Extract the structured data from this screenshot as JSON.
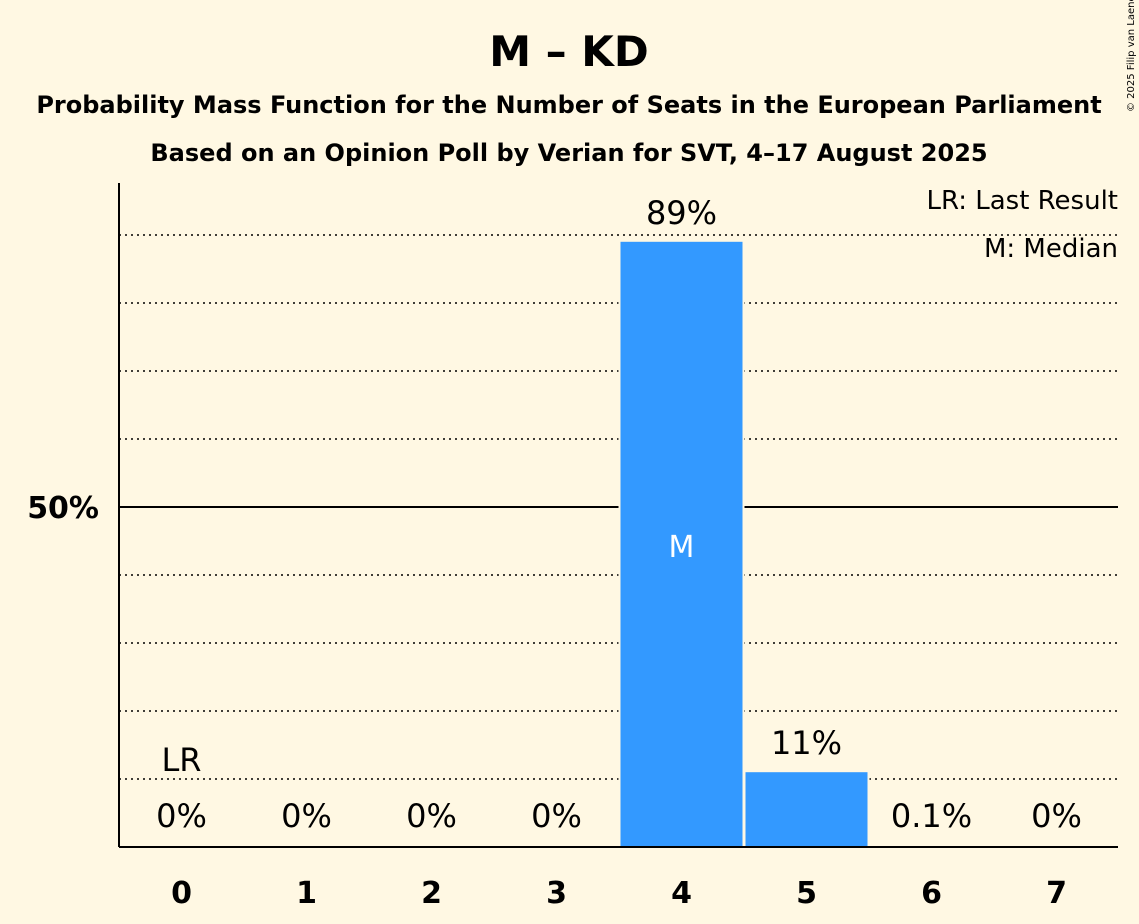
{
  "chart_data": {
    "type": "bar",
    "title": "M – KD",
    "subtitle_line1": "Probability Mass Function for the Number of Seats in the European Parliament",
    "subtitle_line2": "Based on an Opinion Poll by Verian for SVT, 4–17 August 2025",
    "copyright": "© 2025 Filip van Laenen",
    "categories": [
      "0",
      "1",
      "2",
      "3",
      "4",
      "5",
      "6",
      "7"
    ],
    "values": [
      0,
      0,
      0,
      0,
      89,
      11,
      0.1,
      0
    ],
    "value_labels": [
      "0%",
      "0%",
      "0%",
      "0%",
      "89%",
      "11%",
      "0.1%",
      "0%"
    ],
    "ylim": [
      0,
      100
    ],
    "y_ticks": [
      {
        "value": 50,
        "label": "50%"
      }
    ],
    "gridlines": [
      10,
      20,
      30,
      40,
      60,
      70,
      80,
      90
    ],
    "last_result_category": "0",
    "last_result_mark": "LR",
    "median_category": "4",
    "median_mark": "M",
    "legend": {
      "last_result": "LR: Last Result",
      "median": "M: Median",
      "placement": "top-right"
    },
    "colors": {
      "bar": "#3399ff",
      "background": "#fff8e3"
    }
  }
}
